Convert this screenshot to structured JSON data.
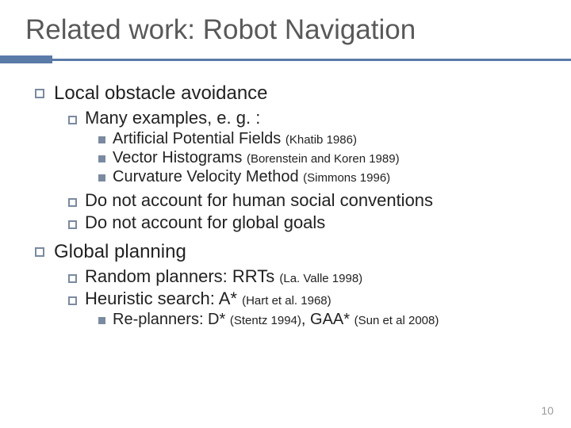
{
  "title": "Related work: Robot Navigation",
  "colors": {
    "accent": "#5a7aa8",
    "title": "#595959",
    "text": "#222222",
    "bullet": "#7a8aa0",
    "pagenum": "#9a9a9a",
    "background": "#ffffff"
  },
  "typography": {
    "title_fontsize": 35,
    "lvl1_fontsize": 24,
    "lvl2_fontsize": 22,
    "lvl3_fontsize": 20,
    "cite_fontsize": 15,
    "pagenum_fontsize": 14
  },
  "items": {
    "local": "Local obstacle avoidance",
    "many": "Many examples, e. g. :",
    "apf": "Artificial Potential Fields ",
    "apf_cite": "(Khatib 1986)",
    "vh": "Vector Histograms ",
    "vh_cite": "(Borenstein and Koren 1989)",
    "cvm": "Curvature Velocity Method ",
    "cvm_cite": "(Simmons 1996)",
    "do1": "Do not account for human social conventions",
    "do2": "Do not account for global goals",
    "global": "Global planning",
    "rand": "Random planners: RRTs ",
    "rand_cite": "(La. Valle 1998)",
    "heur": "Heuristic search: A* ",
    "heur_cite": "(Hart et al. 1968)",
    "replan_pre": "Re-planners: D* ",
    "replan_c1": "(Stentz 1994)",
    "replan_mid": ", GAA* ",
    "replan_c2": "(Sun et al 2008)"
  },
  "page_number": "10"
}
